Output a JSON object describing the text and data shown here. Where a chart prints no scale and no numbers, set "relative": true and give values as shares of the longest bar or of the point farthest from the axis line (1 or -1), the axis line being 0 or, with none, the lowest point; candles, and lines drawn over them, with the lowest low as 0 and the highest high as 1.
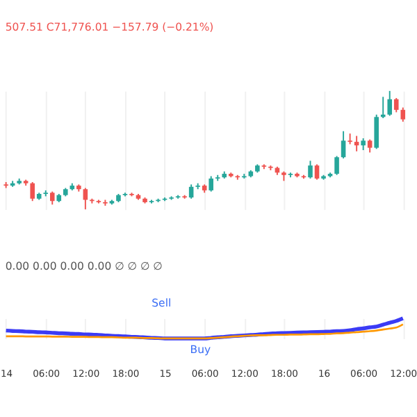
{
  "chart_data": [
    {
      "type": "candlestick",
      "relative": true,
      "tick_labels": false,
      "grid": "x",
      "categories": [
        null,
        null,
        null,
        null,
        null,
        null,
        null,
        null,
        null,
        null,
        null,
        null,
        null,
        null,
        null,
        null,
        null,
        null,
        null,
        null,
        null,
        null,
        null,
        null,
        null,
        null,
        null,
        null,
        null,
        null,
        null,
        null,
        null,
        null,
        null,
        null,
        null,
        null,
        null,
        null,
        null,
        null,
        null,
        null,
        null,
        null,
        null,
        null,
        null,
        null,
        null,
        null,
        null,
        null,
        null,
        null,
        null,
        null,
        null,
        null,
        null
      ],
      "ohlc": [
        [
          0.21,
          0.23,
          0.18,
          0.2
        ],
        [
          0.2,
          0.24,
          0.19,
          0.22
        ],
        [
          0.22,
          0.26,
          0.21,
          0.24
        ],
        [
          0.24,
          0.25,
          0.2,
          0.22
        ],
        [
          0.22,
          0.23,
          0.07,
          0.09
        ],
        [
          0.09,
          0.14,
          0.08,
          0.13
        ],
        [
          0.13,
          0.16,
          0.11,
          0.14
        ],
        [
          0.14,
          0.15,
          0.04,
          0.07
        ],
        [
          0.07,
          0.13,
          0.06,
          0.12
        ],
        [
          0.12,
          0.18,
          0.11,
          0.17
        ],
        [
          0.17,
          0.22,
          0.16,
          0.2
        ],
        [
          0.2,
          0.21,
          0.15,
          0.17
        ],
        [
          0.17,
          0.18,
          0.0,
          0.08
        ],
        [
          0.08,
          0.09,
          0.05,
          0.07
        ],
        [
          0.07,
          0.08,
          0.05,
          0.06
        ],
        [
          0.06,
          0.08,
          0.03,
          0.05
        ],
        [
          0.05,
          0.08,
          0.04,
          0.07
        ],
        [
          0.07,
          0.13,
          0.06,
          0.12
        ],
        [
          0.12,
          0.14,
          0.11,
          0.13
        ],
        [
          0.13,
          0.14,
          0.11,
          0.12
        ],
        [
          0.12,
          0.13,
          0.08,
          0.09
        ],
        [
          0.09,
          0.1,
          0.05,
          0.06
        ],
        [
          0.06,
          0.08,
          0.05,
          0.07
        ],
        [
          0.07,
          0.09,
          0.06,
          0.08
        ],
        [
          0.08,
          0.1,
          0.07,
          0.09
        ],
        [
          0.09,
          0.11,
          0.08,
          0.1
        ],
        [
          0.1,
          0.12,
          0.09,
          0.11
        ],
        [
          0.11,
          0.12,
          0.09,
          0.1
        ],
        [
          0.1,
          0.21,
          0.09,
          0.19
        ],
        [
          0.19,
          0.22,
          0.17,
          0.2
        ],
        [
          0.2,
          0.21,
          0.14,
          0.16
        ],
        [
          0.16,
          0.28,
          0.15,
          0.26
        ],
        [
          0.26,
          0.29,
          0.24,
          0.27
        ],
        [
          0.27,
          0.32,
          0.26,
          0.3
        ],
        [
          0.3,
          0.31,
          0.27,
          0.28
        ],
        [
          0.28,
          0.29,
          0.25,
          0.27
        ],
        [
          0.27,
          0.3,
          0.26,
          0.28
        ],
        [
          0.28,
          0.33,
          0.27,
          0.32
        ],
        [
          0.32,
          0.38,
          0.31,
          0.37
        ],
        [
          0.37,
          0.38,
          0.34,
          0.36
        ],
        [
          0.36,
          0.37,
          0.33,
          0.35
        ],
        [
          0.35,
          0.36,
          0.29,
          0.31
        ],
        [
          0.31,
          0.32,
          0.24,
          0.29
        ],
        [
          0.29,
          0.31,
          0.27,
          0.3
        ],
        [
          0.3,
          0.31,
          0.27,
          0.28
        ],
        [
          0.28,
          0.29,
          0.26,
          0.27
        ],
        [
          0.27,
          0.41,
          0.26,
          0.37
        ],
        [
          0.37,
          0.38,
          0.25,
          0.26
        ],
        [
          0.26,
          0.29,
          0.25,
          0.28
        ],
        [
          0.28,
          0.31,
          0.27,
          0.3
        ],
        [
          0.3,
          0.45,
          0.29,
          0.44
        ],
        [
          0.44,
          0.66,
          0.43,
          0.58
        ],
        [
          0.58,
          0.64,
          0.55,
          0.57
        ],
        [
          0.57,
          0.62,
          0.49,
          0.54
        ],
        [
          0.54,
          0.6,
          0.5,
          0.58
        ],
        [
          0.58,
          0.59,
          0.48,
          0.52
        ],
        [
          0.52,
          0.8,
          0.51,
          0.78
        ],
        [
          0.78,
          0.95,
          0.77,
          0.8
        ],
        [
          0.8,
          1.0,
          0.79,
          0.93
        ],
        [
          0.93,
          0.94,
          0.82,
          0.84
        ],
        [
          0.84,
          0.86,
          0.74,
          0.76
        ]
      ],
      "colors": [
        "#ef5350",
        "#26a69a",
        "#26a69a",
        "#ef5350",
        "#ef5350",
        "#26a69a",
        "#26a69a",
        "#ef5350",
        "#26a69a",
        "#26a69a",
        "#26a69a",
        "#ef5350",
        "#ef5350",
        "#ef5350",
        "#ef5350",
        "#ef5350",
        "#26a69a",
        "#26a69a",
        "#26a69a",
        "#ef5350",
        "#ef5350",
        "#ef5350",
        "#26a69a",
        "#26a69a",
        "#26a69a",
        "#26a69a",
        "#26a69a",
        "#ef5350",
        "#26a69a",
        "#26a69a",
        "#ef5350",
        "#26a69a",
        "#26a69a",
        "#26a69a",
        "#ef5350",
        "#ef5350",
        "#26a69a",
        "#26a69a",
        "#26a69a",
        "#ef5350",
        "#ef5350",
        "#ef5350",
        "#ef5350",
        "#26a69a",
        "#ef5350",
        "#ef5350",
        "#26a69a",
        "#ef5350",
        "#26a69a",
        "#26a69a",
        "#26a69a",
        "#26a69a",
        "#ef5350",
        "#ef5350",
        "#26a69a",
        "#ef5350",
        "#26a69a",
        "#26a69a",
        "#26a69a",
        "#ef5350",
        "#ef5350"
      ],
      "annotations": [
        "507.51 C71,776.01 −157.79 (−0.21%)"
      ]
    },
    {
      "type": "line",
      "relative": true,
      "tick_labels": "x",
      "grid": "x",
      "categories": [
        "14",
        null,
        null,
        null,
        null,
        null,
        "06:00",
        null,
        null,
        null,
        null,
        null,
        "12:00",
        null,
        null,
        null,
        null,
        null,
        "18:00",
        null,
        null,
        null,
        null,
        null,
        "15",
        null,
        null,
        null,
        null,
        null,
        "06:00",
        null,
        null,
        null,
        null,
        null,
        "12:00",
        null,
        null,
        null,
        null,
        null,
        "18:00",
        null,
        null,
        null,
        null,
        null,
        "16",
        null,
        null,
        null,
        null,
        null,
        "06:00",
        null,
        null,
        null,
        null,
        null,
        "12:00"
      ],
      "series": [
        {
          "color": "#3b3bf5",
          "values": [
            0.39,
            0.37,
            0.36,
            0.34,
            0.33,
            0.31,
            0.3,
            0.28,
            0.26,
            0.25,
            0.23,
            0.22,
            0.2,
            0.19,
            0.17,
            0.15,
            0.13,
            0.12,
            0.1,
            0.08,
            0.07,
            0.05,
            0.03,
            0.02,
            0,
            0,
            0,
            0,
            0,
            0,
            0,
            0.03,
            0.06,
            0.08,
            0.11,
            0.13,
            0.15,
            0.17,
            0.19,
            0.22,
            0.24,
            0.26,
            0.27,
            0.28,
            0.29,
            0.3,
            0.31,
            0.32,
            0.33,
            0.34,
            0.36,
            0.37,
            0.41,
            0.46,
            0.5,
            0.55,
            0.59,
            0.68,
            0.78,
            0.87,
            1
          ]
        },
        {
          "color": "#ff9800",
          "values": [
            0.11,
            0.11,
            0.11,
            0.1,
            0.1,
            0.1,
            0.1,
            0.09,
            0.09,
            0.09,
            0.08,
            0.08,
            0.08,
            0.07,
            0.07,
            0.06,
            0.06,
            0.05,
            0.04,
            0.04,
            0.03,
            0.02,
            0.02,
            0.01,
            0,
            0,
            0,
            0,
            0,
            0,
            0,
            0.02,
            0.04,
            0.06,
            0.09,
            0.11,
            0.13,
            0.15,
            0.16,
            0.16,
            0.17,
            0.18,
            0.18,
            0.19,
            0.19,
            0.2,
            0.21,
            0.21,
            0.22,
            0.23,
            0.25,
            0.26,
            0.29,
            0.31,
            0.34,
            0.36,
            0.39,
            0.44,
            0.49,
            0.54,
            0.7
          ]
        }
      ],
      "annotations": [
        "0.00 0.00 0.00 0.00 ∅ ∅ ∅ ∅",
        "Sell",
        "Buy"
      ]
    }
  ]
}
